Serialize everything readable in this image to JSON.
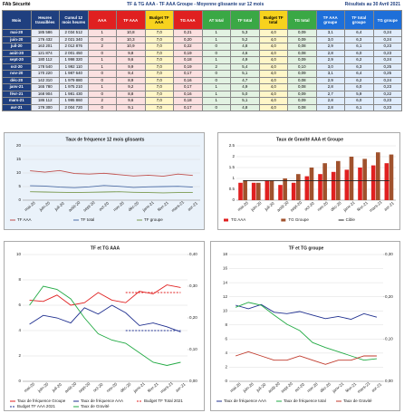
{
  "header": {
    "left": "FAb Sécurité",
    "title": "TF & TG AAA - TF AAA Groupe - Moyenne glissante sur 12 mois",
    "right": "Résultats au 30 Avril 2021"
  },
  "months": [
    "mai-20",
    "juin-20",
    "juil-20",
    "août-20",
    "sept-20",
    "oct-20",
    "nov-20",
    "déc-20",
    "janv-21",
    "févr-21",
    "mars-21",
    "avr-21"
  ],
  "table": {
    "columns": [
      "Mois",
      "Heures travaillées",
      "Cumul 12 mois heures",
      "AAA",
      "TF AAA",
      "Budget TF AAA",
      "TG AAA",
      "AT total",
      "TF total",
      "Budget TF total",
      "TG total",
      "TF AAA groupe",
      "TF total groupe",
      "TG groupe"
    ],
    "rows": [
      [
        "185 586",
        "2 034 512",
        "1",
        "10,8",
        "7,0",
        "0,21",
        "1",
        "5,3",
        "4,0",
        "0,09",
        "3,1",
        "6,4",
        "0,24"
      ],
      [
        "176 432",
        "2 021 340",
        "0",
        "10,3",
        "7,0",
        "0,20",
        "1",
        "5,2",
        "4,0",
        "0,09",
        "3,0",
        "6,3",
        "0,24"
      ],
      [
        "163 201",
        "2 012 876",
        "2",
        "10,9",
        "7,0",
        "0,22",
        "0",
        "4,8",
        "4,0",
        "0,08",
        "2,9",
        "6,1",
        "0,23"
      ],
      [
        "121 874",
        "2 001 450",
        "0",
        "9,8",
        "7,0",
        "0,19",
        "0",
        "4,6",
        "4,0",
        "0,08",
        "2,8",
        "6,0",
        "0,23"
      ],
      [
        "180 112",
        "1 998 320",
        "1",
        "9,6",
        "7,0",
        "0,18",
        "1",
        "4,9",
        "4,0",
        "0,09",
        "2,9",
        "6,2",
        "0,24"
      ],
      [
        "178 540",
        "1 992 110",
        "1",
        "9,9",
        "7,0",
        "0,19",
        "2",
        "5,4",
        "4,0",
        "0,10",
        "3,0",
        "6,3",
        "0,25"
      ],
      [
        "170 220",
        "1 987 640",
        "0",
        "9,4",
        "7,0",
        "0,17",
        "0",
        "5,1",
        "4,0",
        "0,09",
        "3,1",
        "6,4",
        "0,25"
      ],
      [
        "142 310",
        "1 979 880",
        "0",
        "8,9",
        "7,0",
        "0,16",
        "0",
        "4,7",
        "4,0",
        "0,08",
        "2,9",
        "6,2",
        "0,24"
      ],
      [
        "165 780",
        "1 975 210",
        "1",
        "9,2",
        "7,0",
        "0,17",
        "1",
        "4,9",
        "4,0",
        "0,08",
        "2,8",
        "6,0",
        "0,23"
      ],
      [
        "168 904",
        "1 981 430",
        "0",
        "8,8",
        "7,0",
        "0,16",
        "1",
        "5,0",
        "4,0",
        "0,09",
        "2,7",
        "5,9",
        "0,22"
      ],
      [
        "186 112",
        "1 995 860",
        "2",
        "9,6",
        "7,0",
        "0,18",
        "1",
        "5,1",
        "4,0",
        "0,09",
        "2,8",
        "6,0",
        "0,23"
      ],
      [
        "179 300",
        "2 004 720",
        "0",
        "9,1",
        "7,0",
        "0,17",
        "0",
        "4,8",
        "4,0",
        "0,08",
        "2,8",
        "6,1",
        "0,23"
      ]
    ]
  },
  "charts": [
    {
      "title": "Taux de fréquence 12 mois glissants",
      "ylim": [
        0,
        20
      ],
      "yticks": [
        0,
        5,
        10,
        15,
        20
      ],
      "background": "#eaf2fa",
      "series": [
        {
          "name": "TF AAA",
          "kind": "line",
          "color": "#c0504d",
          "values": [
            10.8,
            10.3,
            10.9,
            9.8,
            9.6,
            9.9,
            9.4,
            8.9,
            9.2,
            8.8,
            9.6,
            9.1
          ]
        },
        {
          "name": "TF total",
          "kind": "line",
          "color": "#4f6fa8",
          "values": [
            5.3,
            5.2,
            4.8,
            4.6,
            4.9,
            5.4,
            5.1,
            4.7,
            4.9,
            5.0,
            5.1,
            4.8
          ]
        },
        {
          "name": "TF groupe",
          "kind": "line",
          "color": "#7a9a50",
          "values": [
            3.1,
            3.0,
            2.9,
            2.8,
            2.9,
            3.0,
            3.1,
            2.9,
            2.8,
            2.7,
            2.8,
            2.8
          ]
        }
      ]
    },
    {
      "title": "Taux de Gravité AAA et Groupe",
      "ylim": [
        0,
        2.5
      ],
      "yticks": [
        0,
        0.5,
        1,
        1.5,
        2,
        2.5
      ],
      "background": "#ffffff",
      "series": [
        {
          "name": "TG AAA",
          "kind": "bar",
          "color": "#e02020",
          "values": [
            0.8,
            0.8,
            0.9,
            0.7,
            0.8,
            1.1,
            1.2,
            1.3,
            1.4,
            1.5,
            1.6,
            1.7
          ]
        },
        {
          "name": "TG Groupe",
          "kind": "bar",
          "color": "#a0522d",
          "values": [
            0.9,
            0.8,
            0.9,
            1.0,
            1.2,
            1.5,
            1.7,
            1.8,
            2.0,
            1.9,
            2.2,
            2.1
          ]
        },
        {
          "name": "Cible",
          "kind": "line",
          "color": "#222222",
          "values": [
            0.9,
            0.9,
            0.9,
            0.9,
            0.9,
            0.9,
            0.9,
            0.9,
            0.9,
            0.9,
            0.9,
            0.9
          ]
        }
      ]
    },
    {
      "title": "TF et TG AAA",
      "ylim": [
        0,
        10
      ],
      "yticks": [
        0,
        2,
        4,
        6,
        8,
        10
      ],
      "y2lim": [
        0,
        0.4
      ],
      "y2ticks": [
        {
          "value": 0,
          "label": "0,00"
        },
        {
          "value": 0.1,
          "label": "0,10"
        },
        {
          "value": 0.2,
          "label": "0,20"
        },
        {
          "value": 0.3,
          "label": "0,30"
        },
        {
          "value": 0.4,
          "label": "0,40"
        }
      ],
      "background": "#ffffff",
      "series": [
        {
          "name": "Taux de fréquence Groupe",
          "kind": "line",
          "color": "#e02020",
          "values": [
            6.4,
            6.3,
            6.8,
            6.0,
            6.2,
            7.0,
            6.4,
            6.2,
            7.1,
            6.9,
            7.6,
            7.4
          ]
        },
        {
          "name": "Taux de fréquence AAA",
          "kind": "line",
          "color": "#1f2f8f",
          "values": [
            4.5,
            5.2,
            5.0,
            4.6,
            5.8,
            5.3,
            6.0,
            5.4,
            4.4,
            4.6,
            4.3,
            3.9
          ]
        },
        {
          "name": "Budget TF Total 2021",
          "kind": "line",
          "color": "#e02020",
          "dash": true,
          "values": [
            null,
            null,
            null,
            null,
            null,
            null,
            null,
            7.0,
            7.0,
            7.0,
            7.0,
            7.0
          ]
        },
        {
          "name": "Budget TF AAA 2021",
          "kind": "line",
          "color": "#1f2f8f",
          "dash": true,
          "values": [
            null,
            null,
            null,
            null,
            null,
            null,
            null,
            4.0,
            4.0,
            4.0,
            4.0,
            4.0
          ]
        },
        {
          "name": "Taux de Gravité",
          "kind": "line",
          "color": "#22aa44",
          "axis": "y2",
          "values": [
            0.24,
            0.3,
            0.29,
            0.26,
            0.2,
            0.15,
            0.13,
            0.12,
            0.09,
            0.06,
            0.05,
            0.06
          ]
        }
      ]
    },
    {
      "title": "TF et TG groupe",
      "ylim": [
        0,
        18
      ],
      "yticks": [
        0,
        2,
        4,
        6,
        8,
        10,
        12,
        14,
        16,
        18
      ],
      "y2lim": [
        0,
        0.3
      ],
      "y2ticks": [
        {
          "value": 0,
          "label": "0,00"
        },
        {
          "value": 0.1,
          "label": "0,10"
        },
        {
          "value": 0.2,
          "label": "0,20"
        },
        {
          "value": 0.3,
          "label": "0,30"
        }
      ],
      "background": "#ffffff",
      "series": [
        {
          "name": "Taux de fréquence AAA",
          "kind": "line",
          "color": "#1f2f8f",
          "values": [
            10.8,
            10.3,
            10.9,
            9.8,
            9.6,
            9.9,
            9.4,
            8.9,
            9.2,
            8.8,
            9.6,
            9.1
          ]
        },
        {
          "name": "Taux de fréquence total",
          "kind": "line",
          "color": "#22aa44",
          "values": [
            10.5,
            11.2,
            10.8,
            9.4,
            8.1,
            7.2,
            5.5,
            4.8,
            4.2,
            3.6,
            3.0,
            3.2
          ]
        },
        {
          "name": "Taux de Gravité",
          "kind": "line",
          "color": "#c0392b",
          "axis": "y2",
          "values": [
            0.06,
            0.07,
            0.06,
            0.05,
            0.05,
            0.06,
            0.05,
            0.04,
            0.05,
            0.05,
            0.06,
            0.06
          ]
        }
      ]
    }
  ]
}
